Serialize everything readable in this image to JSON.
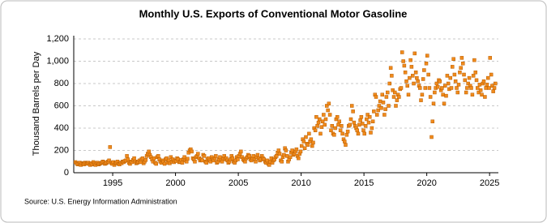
{
  "chart_data": {
    "type": "scatter",
    "title": "Monthly U.S. Exports of Conventional Motor Gasoline",
    "y_label": "Thousand Barrels per Day",
    "source": "Source: U.S. Energy Information Administration",
    "color": "#f08a1c",
    "grid": true,
    "xlim": [
      1991.9,
      2025.7
    ],
    "xticks": [
      1995,
      2000,
      2005,
      2010,
      2015,
      2020,
      2025
    ],
    "ylim": [
      0,
      1200
    ],
    "yticks": [
      0,
      200,
      400,
      600,
      800,
      {
        "value": 1000,
        "label": "1,000"
      },
      {
        "value": 1200,
        "label": "1,200"
      }
    ],
    "x": [
      1992.04,
      1992.13,
      1992.21,
      1992.29,
      1992.38,
      1992.46,
      1992.54,
      1992.63,
      1992.71,
      1992.79,
      1992.88,
      1992.96,
      1993.04,
      1993.13,
      1993.21,
      1993.29,
      1993.38,
      1993.46,
      1993.54,
      1993.63,
      1993.71,
      1993.79,
      1993.88,
      1993.96,
      1994.04,
      1994.13,
      1994.21,
      1994.29,
      1994.38,
      1994.46,
      1994.54,
      1994.63,
      1994.71,
      1994.79,
      1994.88,
      1994.96,
      1995.04,
      1995.13,
      1995.21,
      1995.29,
      1995.38,
      1995.46,
      1995.54,
      1995.63,
      1995.71,
      1995.79,
      1995.88,
      1995.96,
      1996.04,
      1996.13,
      1996.21,
      1996.29,
      1996.38,
      1996.46,
      1996.54,
      1996.63,
      1996.71,
      1996.79,
      1996.88,
      1996.96,
      1997.04,
      1997.13,
      1997.21,
      1997.29,
      1997.38,
      1997.46,
      1997.54,
      1997.63,
      1997.71,
      1997.79,
      1997.88,
      1997.96,
      1998.04,
      1998.13,
      1998.21,
      1998.29,
      1998.38,
      1998.46,
      1998.54,
      1998.63,
      1998.71,
      1998.79,
      1998.88,
      1998.96,
      1999.04,
      1999.13,
      1999.21,
      1999.29,
      1999.38,
      1999.46,
      1999.54,
      1999.63,
      1999.71,
      1999.79,
      1999.88,
      1999.96,
      2000.04,
      2000.13,
      2000.21,
      2000.29,
      2000.38,
      2000.46,
      2000.54,
      2000.63,
      2000.71,
      2000.79,
      2000.88,
      2000.96,
      2001.04,
      2001.13,
      2001.21,
      2001.29,
      2001.38,
      2001.46,
      2001.54,
      2001.63,
      2001.71,
      2001.79,
      2001.88,
      2001.96,
      2002.04,
      2002.13,
      2002.21,
      2002.29,
      2002.38,
      2002.46,
      2002.54,
      2002.63,
      2002.71,
      2002.79,
      2002.88,
      2002.96,
      2003.04,
      2003.13,
      2003.21,
      2003.29,
      2003.38,
      2003.46,
      2003.54,
      2003.63,
      2003.71,
      2003.79,
      2003.88,
      2003.96,
      2004.04,
      2004.13,
      2004.21,
      2004.29,
      2004.38,
      2004.46,
      2004.54,
      2004.63,
      2004.71,
      2004.79,
      2004.88,
      2004.96,
      2005.04,
      2005.13,
      2005.21,
      2005.29,
      2005.38,
      2005.46,
      2005.54,
      2005.63,
      2005.71,
      2005.79,
      2005.88,
      2005.96,
      2006.04,
      2006.13,
      2006.21,
      2006.29,
      2006.38,
      2006.46,
      2006.54,
      2006.63,
      2006.71,
      2006.79,
      2006.88,
      2006.96,
      2007.04,
      2007.13,
      2007.21,
      2007.29,
      2007.38,
      2007.46,
      2007.54,
      2007.63,
      2007.71,
      2007.79,
      2007.88,
      2007.96,
      2008.04,
      2008.13,
      2008.21,
      2008.29,
      2008.38,
      2008.46,
      2008.54,
      2008.63,
      2008.71,
      2008.79,
      2008.88,
      2008.96,
      2009.04,
      2009.13,
      2009.21,
      2009.29,
      2009.38,
      2009.46,
      2009.54,
      2009.63,
      2009.71,
      2009.79,
      2009.88,
      2009.96,
      2010.04,
      2010.13,
      2010.21,
      2010.29,
      2010.38,
      2010.46,
      2010.54,
      2010.63,
      2010.71,
      2010.79,
      2010.88,
      2010.96,
      2011.04,
      2011.13,
      2011.21,
      2011.29,
      2011.38,
      2011.46,
      2011.54,
      2011.63,
      2011.71,
      2011.79,
      2011.88,
      2011.96,
      2012.04,
      2012.13,
      2012.21,
      2012.29,
      2012.38,
      2012.46,
      2012.54,
      2012.63,
      2012.71,
      2012.79,
      2012.88,
      2012.96,
      2013.04,
      2013.13,
      2013.21,
      2013.29,
      2013.38,
      2013.46,
      2013.54,
      2013.63,
      2013.71,
      2013.79,
      2013.88,
      2013.96,
      2014.04,
      2014.13,
      2014.21,
      2014.29,
      2014.38,
      2014.46,
      2014.54,
      2014.63,
      2014.71,
      2014.79,
      2014.88,
      2014.96,
      2015.04,
      2015.13,
      2015.21,
      2015.29,
      2015.38,
      2015.46,
      2015.54,
      2015.63,
      2015.71,
      2015.79,
      2015.88,
      2015.96,
      2016.04,
      2016.13,
      2016.21,
      2016.29,
      2016.38,
      2016.46,
      2016.54,
      2016.63,
      2016.71,
      2016.79,
      2016.88,
      2016.96,
      2017.04,
      2017.13,
      2017.21,
      2017.29,
      2017.38,
      2017.46,
      2017.54,
      2017.63,
      2017.71,
      2017.79,
      2017.88,
      2017.96,
      2018.04,
      2018.13,
      2018.21,
      2018.29,
      2018.38,
      2018.46,
      2018.54,
      2018.63,
      2018.71,
      2018.79,
      2018.88,
      2018.96,
      2019.04,
      2019.13,
      2019.21,
      2019.29,
      2019.38,
      2019.46,
      2019.54,
      2019.63,
      2019.71,
      2019.79,
      2019.88,
      2019.96,
      2020.04,
      2020.13,
      2020.21,
      2020.29,
      2020.38,
      2020.46,
      2020.54,
      2020.63,
      2020.71,
      2020.79,
      2020.88,
      2020.96,
      2021.04,
      2021.13,
      2021.21,
      2021.29,
      2021.38,
      2021.46,
      2021.54,
      2021.63,
      2021.71,
      2021.79,
      2021.88,
      2021.96,
      2022.04,
      2022.13,
      2022.21,
      2022.29,
      2022.38,
      2022.46,
      2022.54,
      2022.63,
      2022.71,
      2022.79,
      2022.88,
      2022.96,
      2023.04,
      2023.13,
      2023.21,
      2023.29,
      2023.38,
      2023.46,
      2023.54,
      2023.63,
      2023.71,
      2023.79,
      2023.88,
      2023.96,
      2024.04,
      2024.13,
      2024.21,
      2024.29,
      2024.38,
      2024.46,
      2024.54,
      2024.63,
      2024.71,
      2024.79,
      2024.88,
      2024.96,
      2025.04,
      2025.13,
      2025.21,
      2025.29,
      2025.38,
      2025.46
    ],
    "values": [
      95,
      85,
      75,
      80,
      90,
      70,
      85,
      80,
      75,
      90,
      85,
      80,
      90,
      80,
      70,
      85,
      75,
      95,
      80,
      70,
      85,
      90,
      75,
      80,
      85,
      90,
      100,
      95,
      80,
      85,
      90,
      100,
      110,
      230,
      90,
      80,
      95,
      70,
      85,
      90,
      100,
      80,
      75,
      90,
      85,
      100,
      95,
      105,
      110,
      150,
      120,
      90,
      80,
      100,
      95,
      115,
      130,
      100,
      85,
      90,
      100,
      110,
      95,
      120,
      130,
      85,
      100,
      115,
      150,
      170,
      190,
      160,
      140,
      120,
      100,
      130,
      90,
      80,
      140,
      150,
      120,
      100,
      90,
      110,
      100,
      80,
      120,
      130,
      90,
      110,
      85,
      140,
      100,
      120,
      95,
      110,
      105,
      130,
      120,
      95,
      100,
      115,
      90,
      120,
      140,
      110,
      100,
      125,
      180,
      200,
      210,
      190,
      130,
      120,
      100,
      140,
      150,
      170,
      130,
      110,
      120,
      110,
      160,
      150,
      100,
      90,
      120,
      130,
      110,
      100,
      140,
      120,
      110,
      130,
      150,
      90,
      100,
      120,
      140,
      110,
      100,
      130,
      150,
      120,
      130,
      110,
      90,
      100,
      120,
      150,
      130,
      100,
      90,
      110,
      140,
      120,
      150,
      170,
      190,
      140,
      120,
      110,
      100,
      130,
      140,
      160,
      150,
      120,
      110,
      130,
      150,
      120,
      100,
      140,
      160,
      130,
      110,
      120,
      150,
      130,
      120,
      100,
      90,
      110,
      80,
      70,
      100,
      130,
      90,
      110,
      120,
      140,
      150,
      180,
      200,
      170,
      110,
      100,
      140,
      160,
      220,
      200,
      150,
      100,
      120,
      140,
      180,
      200,
      160,
      170,
      190,
      210,
      150,
      130,
      170,
      190,
      240,
      300,
      280,
      220,
      320,
      260,
      250,
      350,
      280,
      300,
      240,
      270,
      400,
      380,
      500,
      420,
      450,
      480,
      350,
      410,
      460,
      520,
      430,
      480,
      600,
      560,
      620,
      520,
      380,
      420,
      350,
      340,
      400,
      480,
      500,
      430,
      460,
      380,
      420,
      350,
      300,
      280,
      250,
      340,
      370,
      420,
      430,
      480,
      600,
      550,
      450,
      420,
      400,
      380,
      350,
      430,
      470,
      500,
      440,
      380,
      350,
      420,
      480,
      520,
      450,
      500,
      360,
      400,
      460,
      550,
      700,
      680,
      520,
      560,
      600,
      640,
      580,
      700,
      630,
      520,
      570,
      680,
      720,
      600,
      800,
      940,
      870,
      740,
      680,
      720,
      600,
      650,
      700,
      680,
      750,
      760,
      1080,
      1000,
      960,
      900,
      820,
      780,
      700,
      850,
      1010,
      950,
      870,
      800,
      1070,
      900,
      850,
      820,
      780,
      760,
      650,
      700,
      840,
      920,
      760,
      980,
      1050,
      880,
      760,
      680,
      320,
      460,
      620,
      720,
      760,
      800,
      770,
      830,
      820,
      740,
      760,
      700,
      620,
      780,
      690,
      870,
      800,
      750,
      850,
      760,
      950,
      1020,
      880,
      820,
      760,
      720,
      790,
      900,
      940,
      1030,
      980,
      880,
      830,
      720,
      760,
      800,
      850,
      780,
      760,
      700,
      870,
      1010,
      900,
      830,
      760,
      720,
      790,
      740,
      700,
      800,
      820,
      680,
      760,
      790,
      850,
      760,
      1030,
      880,
      780,
      730,
      760,
      800
    ]
  }
}
